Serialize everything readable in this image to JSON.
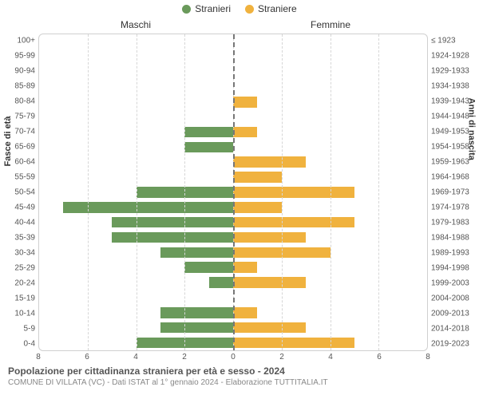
{
  "legend": {
    "male": {
      "label": "Stranieri",
      "color": "#6a9a5b"
    },
    "female": {
      "label": "Straniere",
      "color": "#f0b23e"
    }
  },
  "column_headers": {
    "left": "Maschi",
    "right": "Femmine"
  },
  "axis_titles": {
    "left": "Fasce di età",
    "right": "Anni di nascita"
  },
  "chart": {
    "type": "population-pyramid",
    "background_color": "#ffffff",
    "grid_color": "#d6d6d6",
    "center_line_color": "#777777",
    "xmax": 8,
    "xticks": [
      8,
      6,
      4,
      2,
      0,
      2,
      4,
      6,
      8
    ],
    "bar_male_color": "#6a9a5b",
    "bar_female_color": "#f0b23e",
    "label_fontsize": 10,
    "rows": [
      {
        "age": "100+",
        "birth": "≤ 1923",
        "m": 0,
        "f": 0
      },
      {
        "age": "95-99",
        "birth": "1924-1928",
        "m": 0,
        "f": 0
      },
      {
        "age": "90-94",
        "birth": "1929-1933",
        "m": 0,
        "f": 0
      },
      {
        "age": "85-89",
        "birth": "1934-1938",
        "m": 0,
        "f": 0
      },
      {
        "age": "80-84",
        "birth": "1939-1943",
        "m": 0,
        "f": 1
      },
      {
        "age": "75-79",
        "birth": "1944-1948",
        "m": 0,
        "f": 0
      },
      {
        "age": "70-74",
        "birth": "1949-1953",
        "m": 2,
        "f": 1
      },
      {
        "age": "65-69",
        "birth": "1954-1958",
        "m": 2,
        "f": 0
      },
      {
        "age": "60-64",
        "birth": "1959-1963",
        "m": 0,
        "f": 3
      },
      {
        "age": "55-59",
        "birth": "1964-1968",
        "m": 0,
        "f": 2
      },
      {
        "age": "50-54",
        "birth": "1969-1973",
        "m": 4,
        "f": 5
      },
      {
        "age": "45-49",
        "birth": "1974-1978",
        "m": 7,
        "f": 2
      },
      {
        "age": "40-44",
        "birth": "1979-1983",
        "m": 5,
        "f": 5
      },
      {
        "age": "35-39",
        "birth": "1984-1988",
        "m": 5,
        "f": 3
      },
      {
        "age": "30-34",
        "birth": "1989-1993",
        "m": 3,
        "f": 4
      },
      {
        "age": "25-29",
        "birth": "1994-1998",
        "m": 2,
        "f": 1
      },
      {
        "age": "20-24",
        "birth": "1999-2003",
        "m": 1,
        "f": 3
      },
      {
        "age": "15-19",
        "birth": "2004-2008",
        "m": 0,
        "f": 0
      },
      {
        "age": "10-14",
        "birth": "2009-2013",
        "m": 3,
        "f": 1
      },
      {
        "age": "5-9",
        "birth": "2014-2018",
        "m": 3,
        "f": 3
      },
      {
        "age": "0-4",
        "birth": "2019-2023",
        "m": 4,
        "f": 5
      }
    ]
  },
  "footer": {
    "title": "Popolazione per cittadinanza straniera per età e sesso - 2024",
    "subtitle": "COMUNE DI VILLATA (VC) - Dati ISTAT al 1° gennaio 2024 - Elaborazione TUTTITALIA.IT"
  }
}
